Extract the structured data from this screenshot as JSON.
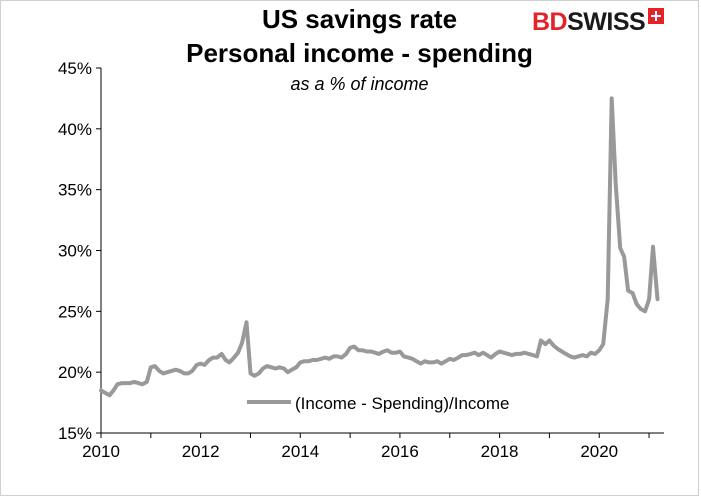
{
  "chart_data": {
    "type": "line",
    "title": "US savings rate",
    "subtitle_line": "Personal income - spending",
    "note": "as a % of income",
    "legend": "(Income - Spending)/Income",
    "legend_placement": "bottom-center inside plot",
    "y_ticks": [
      "15%",
      "20%",
      "25%",
      "30%",
      "35%",
      "40%",
      "45%"
    ],
    "x_ticks": [
      "2010",
      "2012",
      "2014",
      "2016",
      "2018",
      "2020"
    ],
    "ylim": [
      15,
      45
    ],
    "xlim": [
      2010,
      2021.3
    ],
    "grid": false,
    "series": [
      {
        "color": "#999999",
        "points": [
          [
            2010.0,
            18.5
          ],
          [
            2010.08,
            18.3
          ],
          [
            2010.17,
            18.1
          ],
          [
            2010.25,
            18.5
          ],
          [
            2010.33,
            19.0
          ],
          [
            2010.42,
            19.1
          ],
          [
            2010.5,
            19.1
          ],
          [
            2010.58,
            19.1
          ],
          [
            2010.67,
            19.2
          ],
          [
            2010.75,
            19.1
          ],
          [
            2010.83,
            19.0
          ],
          [
            2010.92,
            19.2
          ],
          [
            2011.0,
            20.4
          ],
          [
            2011.08,
            20.5
          ],
          [
            2011.17,
            20.1
          ],
          [
            2011.25,
            19.9
          ],
          [
            2011.33,
            20.0
          ],
          [
            2011.42,
            20.1
          ],
          [
            2011.5,
            20.2
          ],
          [
            2011.58,
            20.1
          ],
          [
            2011.67,
            19.9
          ],
          [
            2011.75,
            19.9
          ],
          [
            2011.83,
            20.1
          ],
          [
            2011.92,
            20.6
          ],
          [
            2012.0,
            20.7
          ],
          [
            2012.08,
            20.6
          ],
          [
            2012.17,
            21.0
          ],
          [
            2012.25,
            21.2
          ],
          [
            2012.33,
            21.2
          ],
          [
            2012.42,
            21.5
          ],
          [
            2012.5,
            21.0
          ],
          [
            2012.58,
            20.8
          ],
          [
            2012.67,
            21.2
          ],
          [
            2012.75,
            21.6
          ],
          [
            2012.83,
            22.4
          ],
          [
            2012.92,
            24.1
          ],
          [
            2013.0,
            19.9
          ],
          [
            2013.08,
            19.7
          ],
          [
            2013.17,
            19.9
          ],
          [
            2013.25,
            20.3
          ],
          [
            2013.33,
            20.5
          ],
          [
            2013.42,
            20.4
          ],
          [
            2013.5,
            20.3
          ],
          [
            2013.58,
            20.4
          ],
          [
            2013.67,
            20.3
          ],
          [
            2013.75,
            20.0
          ],
          [
            2013.83,
            20.2
          ],
          [
            2013.92,
            20.4
          ],
          [
            2014.0,
            20.8
          ],
          [
            2014.08,
            20.9
          ],
          [
            2014.17,
            20.9
          ],
          [
            2014.25,
            21.0
          ],
          [
            2014.33,
            21.0
          ],
          [
            2014.42,
            21.1
          ],
          [
            2014.5,
            21.2
          ],
          [
            2014.58,
            21.1
          ],
          [
            2014.67,
            21.3
          ],
          [
            2014.75,
            21.3
          ],
          [
            2014.83,
            21.2
          ],
          [
            2014.92,
            21.5
          ],
          [
            2015.0,
            22.0
          ],
          [
            2015.08,
            22.1
          ],
          [
            2015.17,
            21.8
          ],
          [
            2015.25,
            21.8
          ],
          [
            2015.33,
            21.7
          ],
          [
            2015.42,
            21.7
          ],
          [
            2015.5,
            21.6
          ],
          [
            2015.58,
            21.5
          ],
          [
            2015.67,
            21.7
          ],
          [
            2015.75,
            21.8
          ],
          [
            2015.83,
            21.6
          ],
          [
            2015.92,
            21.6
          ],
          [
            2016.0,
            21.7
          ],
          [
            2016.08,
            21.3
          ],
          [
            2016.17,
            21.2
          ],
          [
            2016.25,
            21.1
          ],
          [
            2016.33,
            20.9
          ],
          [
            2016.42,
            20.7
          ],
          [
            2016.5,
            20.9
          ],
          [
            2016.58,
            20.8
          ],
          [
            2016.67,
            20.8
          ],
          [
            2016.75,
            20.9
          ],
          [
            2016.83,
            20.7
          ],
          [
            2016.92,
            20.9
          ],
          [
            2017.0,
            21.1
          ],
          [
            2017.08,
            21.0
          ],
          [
            2017.17,
            21.2
          ],
          [
            2017.25,
            21.4
          ],
          [
            2017.33,
            21.4
          ],
          [
            2017.42,
            21.5
          ],
          [
            2017.5,
            21.6
          ],
          [
            2017.58,
            21.4
          ],
          [
            2017.67,
            21.6
          ],
          [
            2017.75,
            21.4
          ],
          [
            2017.83,
            21.2
          ],
          [
            2017.92,
            21.5
          ],
          [
            2018.0,
            21.7
          ],
          [
            2018.08,
            21.6
          ],
          [
            2018.17,
            21.5
          ],
          [
            2018.25,
            21.4
          ],
          [
            2018.33,
            21.5
          ],
          [
            2018.42,
            21.5
          ],
          [
            2018.5,
            21.6
          ],
          [
            2018.58,
            21.5
          ],
          [
            2018.67,
            21.4
          ],
          [
            2018.75,
            21.3
          ],
          [
            2018.83,
            22.6
          ],
          [
            2018.92,
            22.3
          ],
          [
            2019.0,
            22.6
          ],
          [
            2019.08,
            22.2
          ],
          [
            2019.17,
            21.9
          ],
          [
            2019.25,
            21.7
          ],
          [
            2019.33,
            21.5
          ],
          [
            2019.42,
            21.3
          ],
          [
            2019.5,
            21.2
          ],
          [
            2019.58,
            21.3
          ],
          [
            2019.67,
            21.4
          ],
          [
            2019.75,
            21.3
          ],
          [
            2019.83,
            21.6
          ],
          [
            2019.92,
            21.5
          ],
          [
            2020.0,
            21.8
          ],
          [
            2020.08,
            22.3
          ],
          [
            2020.17,
            26.0
          ],
          [
            2020.25,
            42.5
          ],
          [
            2020.33,
            35.5
          ],
          [
            2020.42,
            30.2
          ],
          [
            2020.5,
            29.5
          ],
          [
            2020.58,
            26.7
          ],
          [
            2020.67,
            26.5
          ],
          [
            2020.75,
            25.6
          ],
          [
            2020.83,
            25.2
          ],
          [
            2020.92,
            25.0
          ],
          [
            2021.0,
            26.0
          ],
          [
            2021.08,
            30.3
          ],
          [
            2021.17,
            26.0
          ]
        ]
      }
    ]
  }
}
